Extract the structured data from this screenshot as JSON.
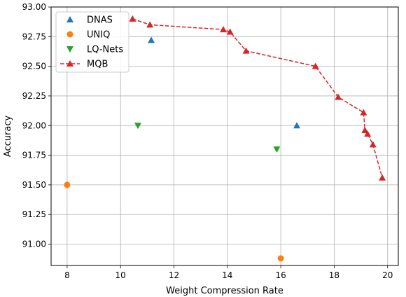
{
  "chart_data": {
    "type": "scatter",
    "xlabel": "Weight Compression Rate",
    "ylabel": "Accuracy",
    "xlim": [
      7.4,
      20.4
    ],
    "ylim": [
      90.82,
      93.0
    ],
    "x_ticks": [
      8,
      10,
      12,
      14,
      16,
      18,
      20
    ],
    "y_ticks": [
      91.0,
      91.25,
      91.5,
      91.75,
      92.0,
      92.25,
      92.5,
      92.75,
      93.0
    ],
    "y_tick_labels": [
      "91.00",
      "91.25",
      "91.50",
      "91.75",
      "92.00",
      "92.25",
      "92.50",
      "92.75",
      "93.00"
    ],
    "grid": true,
    "legend_position": "top-left",
    "series": [
      {
        "name": "DNAS",
        "marker": "triangle-up",
        "line": false,
        "color": "#1f77b4",
        "points": [
          [
            11.15,
            92.72
          ],
          [
            16.6,
            92.0
          ]
        ]
      },
      {
        "name": "UNIQ",
        "marker": "circle",
        "line": false,
        "color": "#ff7f0e",
        "points": [
          [
            8.0,
            91.5
          ],
          [
            16.0,
            90.88
          ]
        ]
      },
      {
        "name": "LQ-Nets",
        "marker": "triangle-down",
        "line": false,
        "color": "#2ca02c",
        "points": [
          [
            10.65,
            92.0
          ],
          [
            15.85,
            91.8
          ]
        ]
      },
      {
        "name": "MQB",
        "marker": "triangle-up",
        "line": true,
        "dashed": true,
        "color": "#d62728",
        "points": [
          [
            10.45,
            92.9
          ],
          [
            11.1,
            92.85
          ],
          [
            13.85,
            92.81
          ],
          [
            14.1,
            92.79
          ],
          [
            14.7,
            92.63
          ],
          [
            17.3,
            92.5
          ],
          [
            18.15,
            92.24
          ],
          [
            19.1,
            92.11
          ],
          [
            19.15,
            91.96
          ],
          [
            19.25,
            91.93
          ],
          [
            19.45,
            91.84
          ],
          [
            19.8,
            91.56
          ]
        ]
      }
    ]
  }
}
